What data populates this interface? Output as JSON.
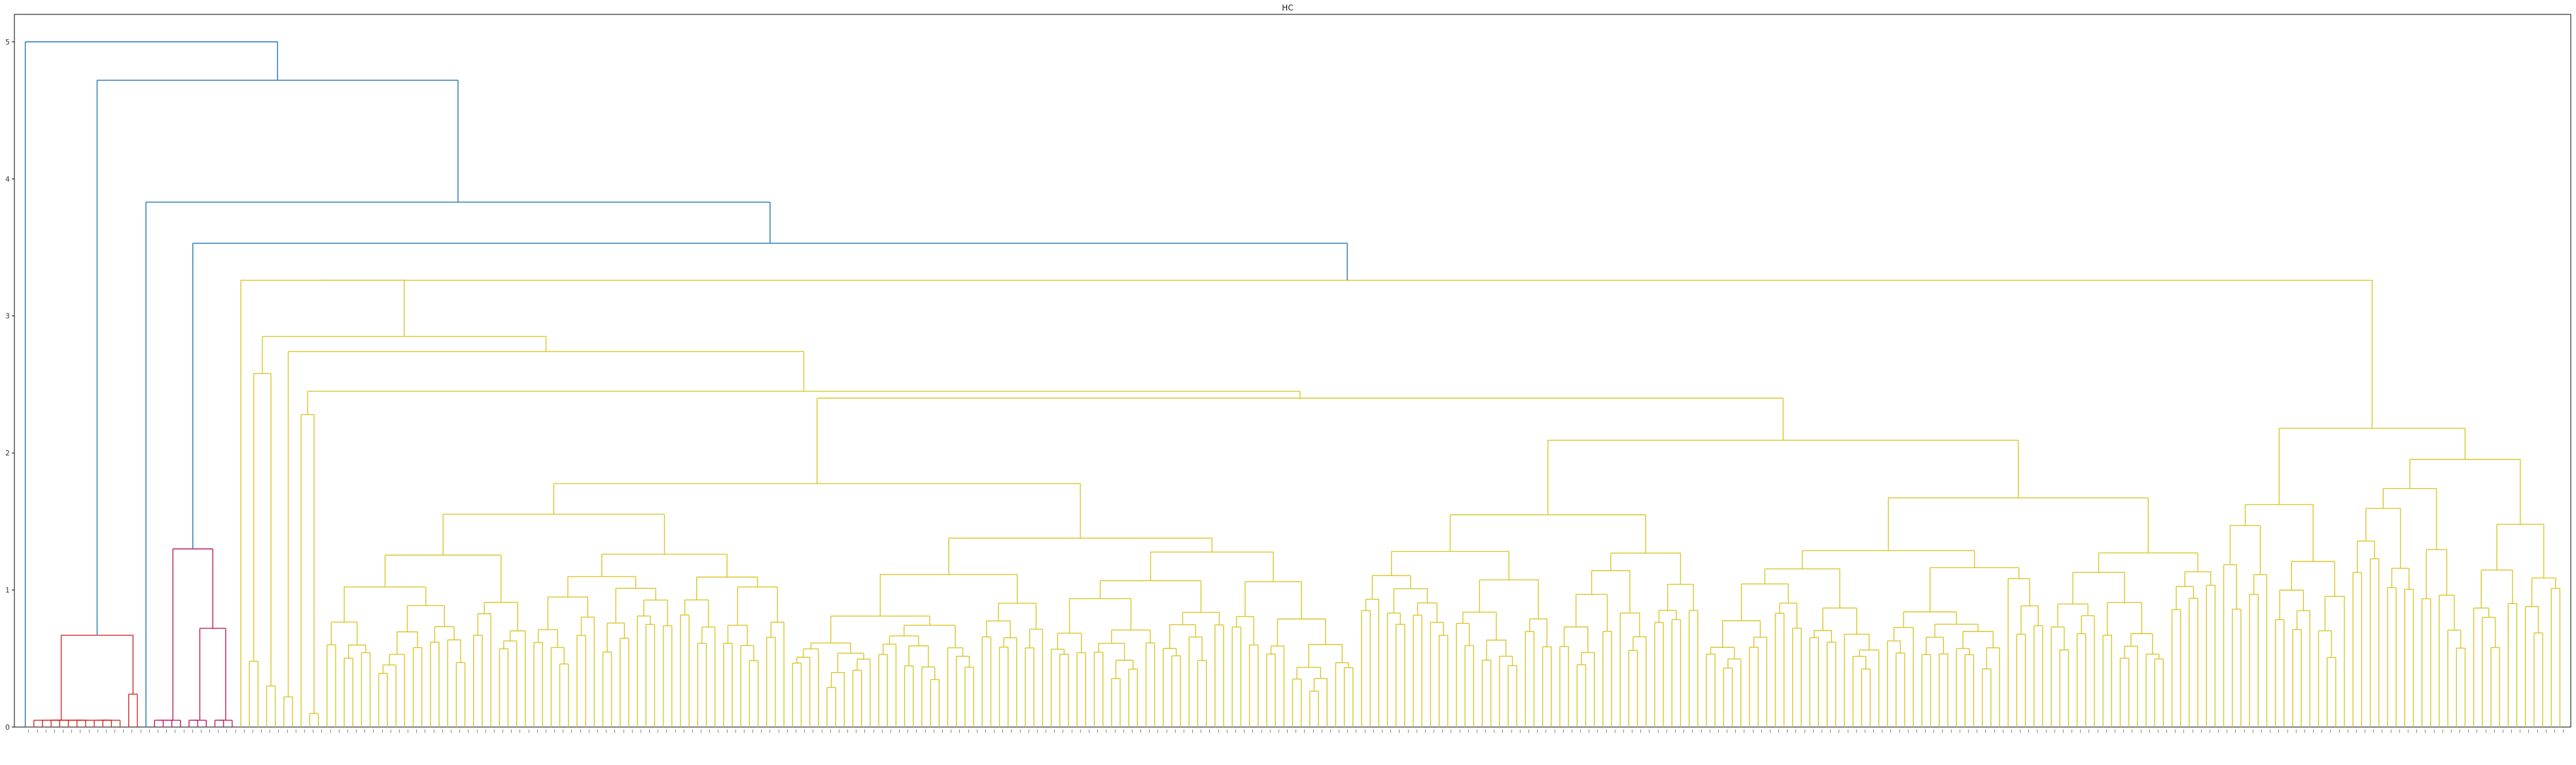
{
  "chart_data": {
    "type": "dendrogram",
    "title": "HC",
    "xlabel": "",
    "ylabel": "",
    "ylim": [
      0,
      5.2
    ],
    "y_ticks": [
      0,
      1,
      2,
      3,
      4,
      5
    ],
    "grid": false,
    "leaf_count": 372,
    "leaf_labels_legible": false,
    "leaf_label_orientation": "vertical",
    "cluster_colors": {
      "root": "#1f77b4",
      "red": "#d62728",
      "magenta": "#c2185b",
      "yellow": "#d9c62a"
    },
    "merges_shown": [
      {
        "cluster": "root",
        "height": 5.0
      },
      {
        "cluster": "root",
        "height": 4.72
      },
      {
        "cluster": "root",
        "height": 3.83
      },
      {
        "cluster": "root",
        "height": 3.53
      },
      {
        "cluster": "yellow",
        "height": 3.26
      },
      {
        "cluster": "yellow",
        "height": 2.85
      },
      {
        "cluster": "yellow",
        "height": 2.74
      },
      {
        "cluster": "yellow",
        "height": 2.45
      },
      {
        "cluster": "yellow",
        "height": 2.4
      },
      {
        "cluster": "yellow",
        "height": 2.18
      },
      {
        "cluster": "yellow",
        "height": 2.05
      },
      {
        "cluster": "yellow",
        "height": 1.8
      },
      {
        "cluster": "magenta",
        "height": 1.3
      },
      {
        "cluster": "magenta",
        "height": 0.72
      },
      {
        "cluster": "red",
        "height": 0.67
      },
      {
        "cluster": "red",
        "height": 0.24
      }
    ]
  }
}
